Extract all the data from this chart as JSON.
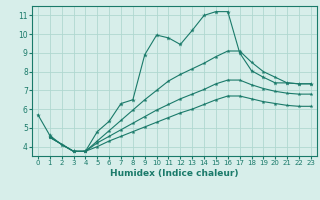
{
  "xlabel": "Humidex (Indice chaleur)",
  "background_color": "#d7eeea",
  "grid_color": "#b0d8d0",
  "line_color": "#1a7a6a",
  "xlim": [
    -0.5,
    23.5
  ],
  "ylim": [
    3.5,
    11.5
  ],
  "xticks": [
    0,
    1,
    2,
    3,
    4,
    5,
    6,
    7,
    8,
    9,
    10,
    11,
    12,
    13,
    14,
    15,
    16,
    17,
    18,
    19,
    20,
    21,
    22,
    23
  ],
  "yticks": [
    4,
    5,
    6,
    7,
    8,
    9,
    10,
    11
  ],
  "series_main": {
    "x": [
      0,
      1,
      2,
      3,
      4,
      5,
      6,
      7,
      8,
      9,
      10,
      11,
      12,
      13,
      14,
      15,
      16,
      17,
      18,
      19,
      20,
      21,
      22,
      23
    ],
    "y": [
      5.7,
      4.6,
      4.1,
      3.75,
      3.75,
      4.8,
      5.35,
      6.3,
      6.5,
      8.9,
      9.95,
      9.8,
      9.45,
      10.2,
      11.0,
      11.2,
      11.2,
      9.0,
      8.05,
      7.7,
      7.4,
      7.4,
      7.35,
      7.35
    ]
  },
  "series_linear": [
    {
      "x": [
        1,
        3,
        4,
        5,
        6,
        7,
        8,
        9,
        10,
        11,
        12,
        13,
        14,
        15,
        16,
        17,
        18,
        19,
        20,
        21,
        22,
        23
      ],
      "y": [
        4.5,
        3.75,
        3.75,
        4.3,
        4.85,
        5.4,
        5.95,
        6.5,
        7.0,
        7.5,
        7.85,
        8.15,
        8.45,
        8.8,
        9.1,
        9.1,
        8.5,
        8.0,
        7.7,
        7.4,
        7.35,
        7.35
      ]
    },
    {
      "x": [
        1,
        3,
        4,
        5,
        6,
        7,
        8,
        9,
        10,
        11,
        12,
        13,
        14,
        15,
        16,
        17,
        18,
        19,
        20,
        21,
        22,
        23
      ],
      "y": [
        4.5,
        3.75,
        3.75,
        4.2,
        4.55,
        4.9,
        5.25,
        5.6,
        5.95,
        6.25,
        6.55,
        6.8,
        7.05,
        7.35,
        7.55,
        7.55,
        7.3,
        7.1,
        6.95,
        6.85,
        6.8,
        6.8
      ]
    },
    {
      "x": [
        1,
        3,
        4,
        5,
        6,
        7,
        8,
        9,
        10,
        11,
        12,
        13,
        14,
        15,
        16,
        17,
        18,
        19,
        20,
        21,
        22,
        23
      ],
      "y": [
        4.5,
        3.75,
        3.75,
        4.0,
        4.3,
        4.55,
        4.8,
        5.05,
        5.3,
        5.55,
        5.8,
        6.0,
        6.25,
        6.5,
        6.7,
        6.7,
        6.55,
        6.4,
        6.3,
        6.2,
        6.15,
        6.15
      ]
    }
  ]
}
